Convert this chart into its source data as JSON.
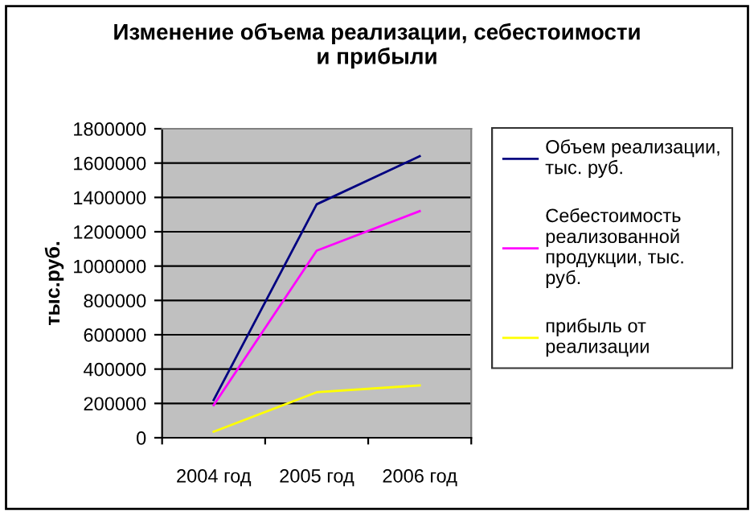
{
  "chart_data": {
    "type": "line",
    "title": "Изменение объема реализации, себестоимости\nи прибыли",
    "ylabel": "тыс.руб.",
    "categories": [
      "2004 год",
      "2005 год",
      "2006 год"
    ],
    "series": [
      {
        "name": "Объем реализации,\nтыс. руб.",
        "color": "#000080",
        "values": [
          220000,
          1360000,
          1640000
        ]
      },
      {
        "name": "Себестоимость\nреализованной\nпродукции, тыс.\nруб.",
        "color": "#ff00ff",
        "values": [
          190000,
          1090000,
          1320000
        ]
      },
      {
        "name": "прибыль от\nреализации",
        "color": "#ffff00",
        "values": [
          35000,
          265000,
          305000
        ]
      }
    ],
    "ylim": [
      0,
      1800000
    ],
    "yticks": [
      0,
      200000,
      400000,
      600000,
      800000,
      1000000,
      1200000,
      1400000,
      1600000,
      1800000
    ],
    "grid": "y",
    "legend": "right",
    "marker": "none",
    "line_style": "solid"
  }
}
